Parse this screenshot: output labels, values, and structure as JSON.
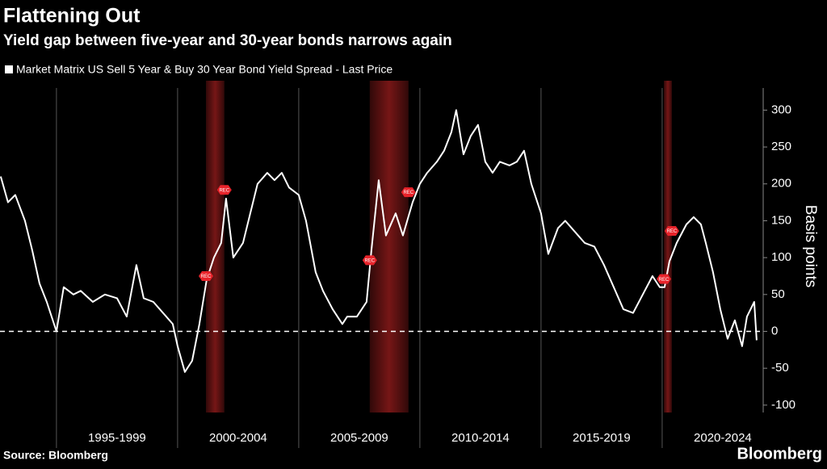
{
  "chart_data": {
    "type": "line",
    "title": "Flattening Out",
    "subtitle": "Yield gap between five-year and 30-year bonds narrows again",
    "y_axis_label": "Basis points",
    "source": "Source: Bloomberg",
    "brand": "Bloomberg",
    "categories": [
      "1995-1999",
      "2000-2004",
      "2005-2009",
      "2010-2014",
      "2015-2019",
      "2020-2024"
    ],
    "xlim": [
      1992.67,
      2024.17
    ],
    "xticks": [
      1995,
      2000,
      2005,
      2010,
      2015,
      2020
    ],
    "ylim": [
      -110,
      330
    ],
    "yticks": [
      -100,
      -50,
      0,
      50,
      100,
      150,
      200,
      250,
      300
    ],
    "reference_line": 0,
    "recessions": [
      {
        "start": 2001.17,
        "end": 2001.93,
        "label": "REC"
      },
      {
        "start": 2007.93,
        "end": 2009.53,
        "label": "REC"
      },
      {
        "start": 2020.07,
        "end": 2020.4,
        "label": "REC"
      }
    ],
    "recession_color": "#8b1a1a",
    "series": [
      {
        "name": "Market Matrix US Sell 5 Year & Buy 30 Year Bond Yield Spread - Last Price",
        "color": "#ffffff",
        "x": [
          1992.7,
          1993.0,
          1993.3,
          1993.7,
          1994.0,
          1994.3,
          1994.6,
          1995.0,
          1995.3,
          1995.7,
          1996.0,
          1996.5,
          1997.0,
          1997.5,
          1997.9,
          1998.3,
          1998.6,
          1999.0,
          1999.4,
          1999.8,
          2000.0,
          2000.3,
          2000.6,
          2000.9,
          2001.2,
          2001.5,
          2001.8,
          2002.0,
          2002.3,
          2002.7,
          2003.0,
          2003.3,
          2003.7,
          2004.0,
          2004.3,
          2004.6,
          2005.0,
          2005.3,
          2005.7,
          2006.0,
          2006.4,
          2006.8,
          2007.0,
          2007.4,
          2007.8,
          2008.0,
          2008.3,
          2008.6,
          2009.0,
          2009.3,
          2009.7,
          2010.0,
          2010.3,
          2010.7,
          2011.0,
          2011.3,
          2011.5,
          2011.8,
          2012.1,
          2012.4,
          2012.7,
          2013.0,
          2013.3,
          2013.7,
          2014.0,
          2014.3,
          2014.6,
          2015.0,
          2015.3,
          2015.7,
          2016.0,
          2016.4,
          2016.8,
          2017.2,
          2017.6,
          2018.0,
          2018.4,
          2018.8,
          2019.2,
          2019.6,
          2019.9,
          2020.1,
          2020.3,
          2020.6,
          2021.0,
          2021.3,
          2021.6,
          2021.8,
          2022.1,
          2022.4,
          2022.7,
          2023.0,
          2023.3,
          2023.5,
          2023.8,
          2023.9
        ],
        "values": [
          210,
          175,
          185,
          150,
          110,
          65,
          40,
          0,
          60,
          50,
          55,
          40,
          50,
          45,
          20,
          90,
          45,
          40,
          25,
          10,
          -20,
          -55,
          -40,
          10,
          70,
          100,
          120,
          180,
          100,
          120,
          160,
          200,
          215,
          205,
          215,
          195,
          185,
          150,
          80,
          55,
          30,
          10,
          20,
          20,
          40,
          110,
          205,
          130,
          160,
          130,
          175,
          200,
          215,
          230,
          245,
          270,
          300,
          240,
          265,
          280,
          230,
          215,
          230,
          225,
          230,
          245,
          200,
          160,
          105,
          140,
          150,
          135,
          120,
          115,
          90,
          60,
          30,
          25,
          50,
          75,
          60,
          60,
          95,
          120,
          145,
          155,
          145,
          120,
          80,
          30,
          -10,
          15,
          -20,
          20,
          40,
          -12
        ]
      }
    ]
  }
}
